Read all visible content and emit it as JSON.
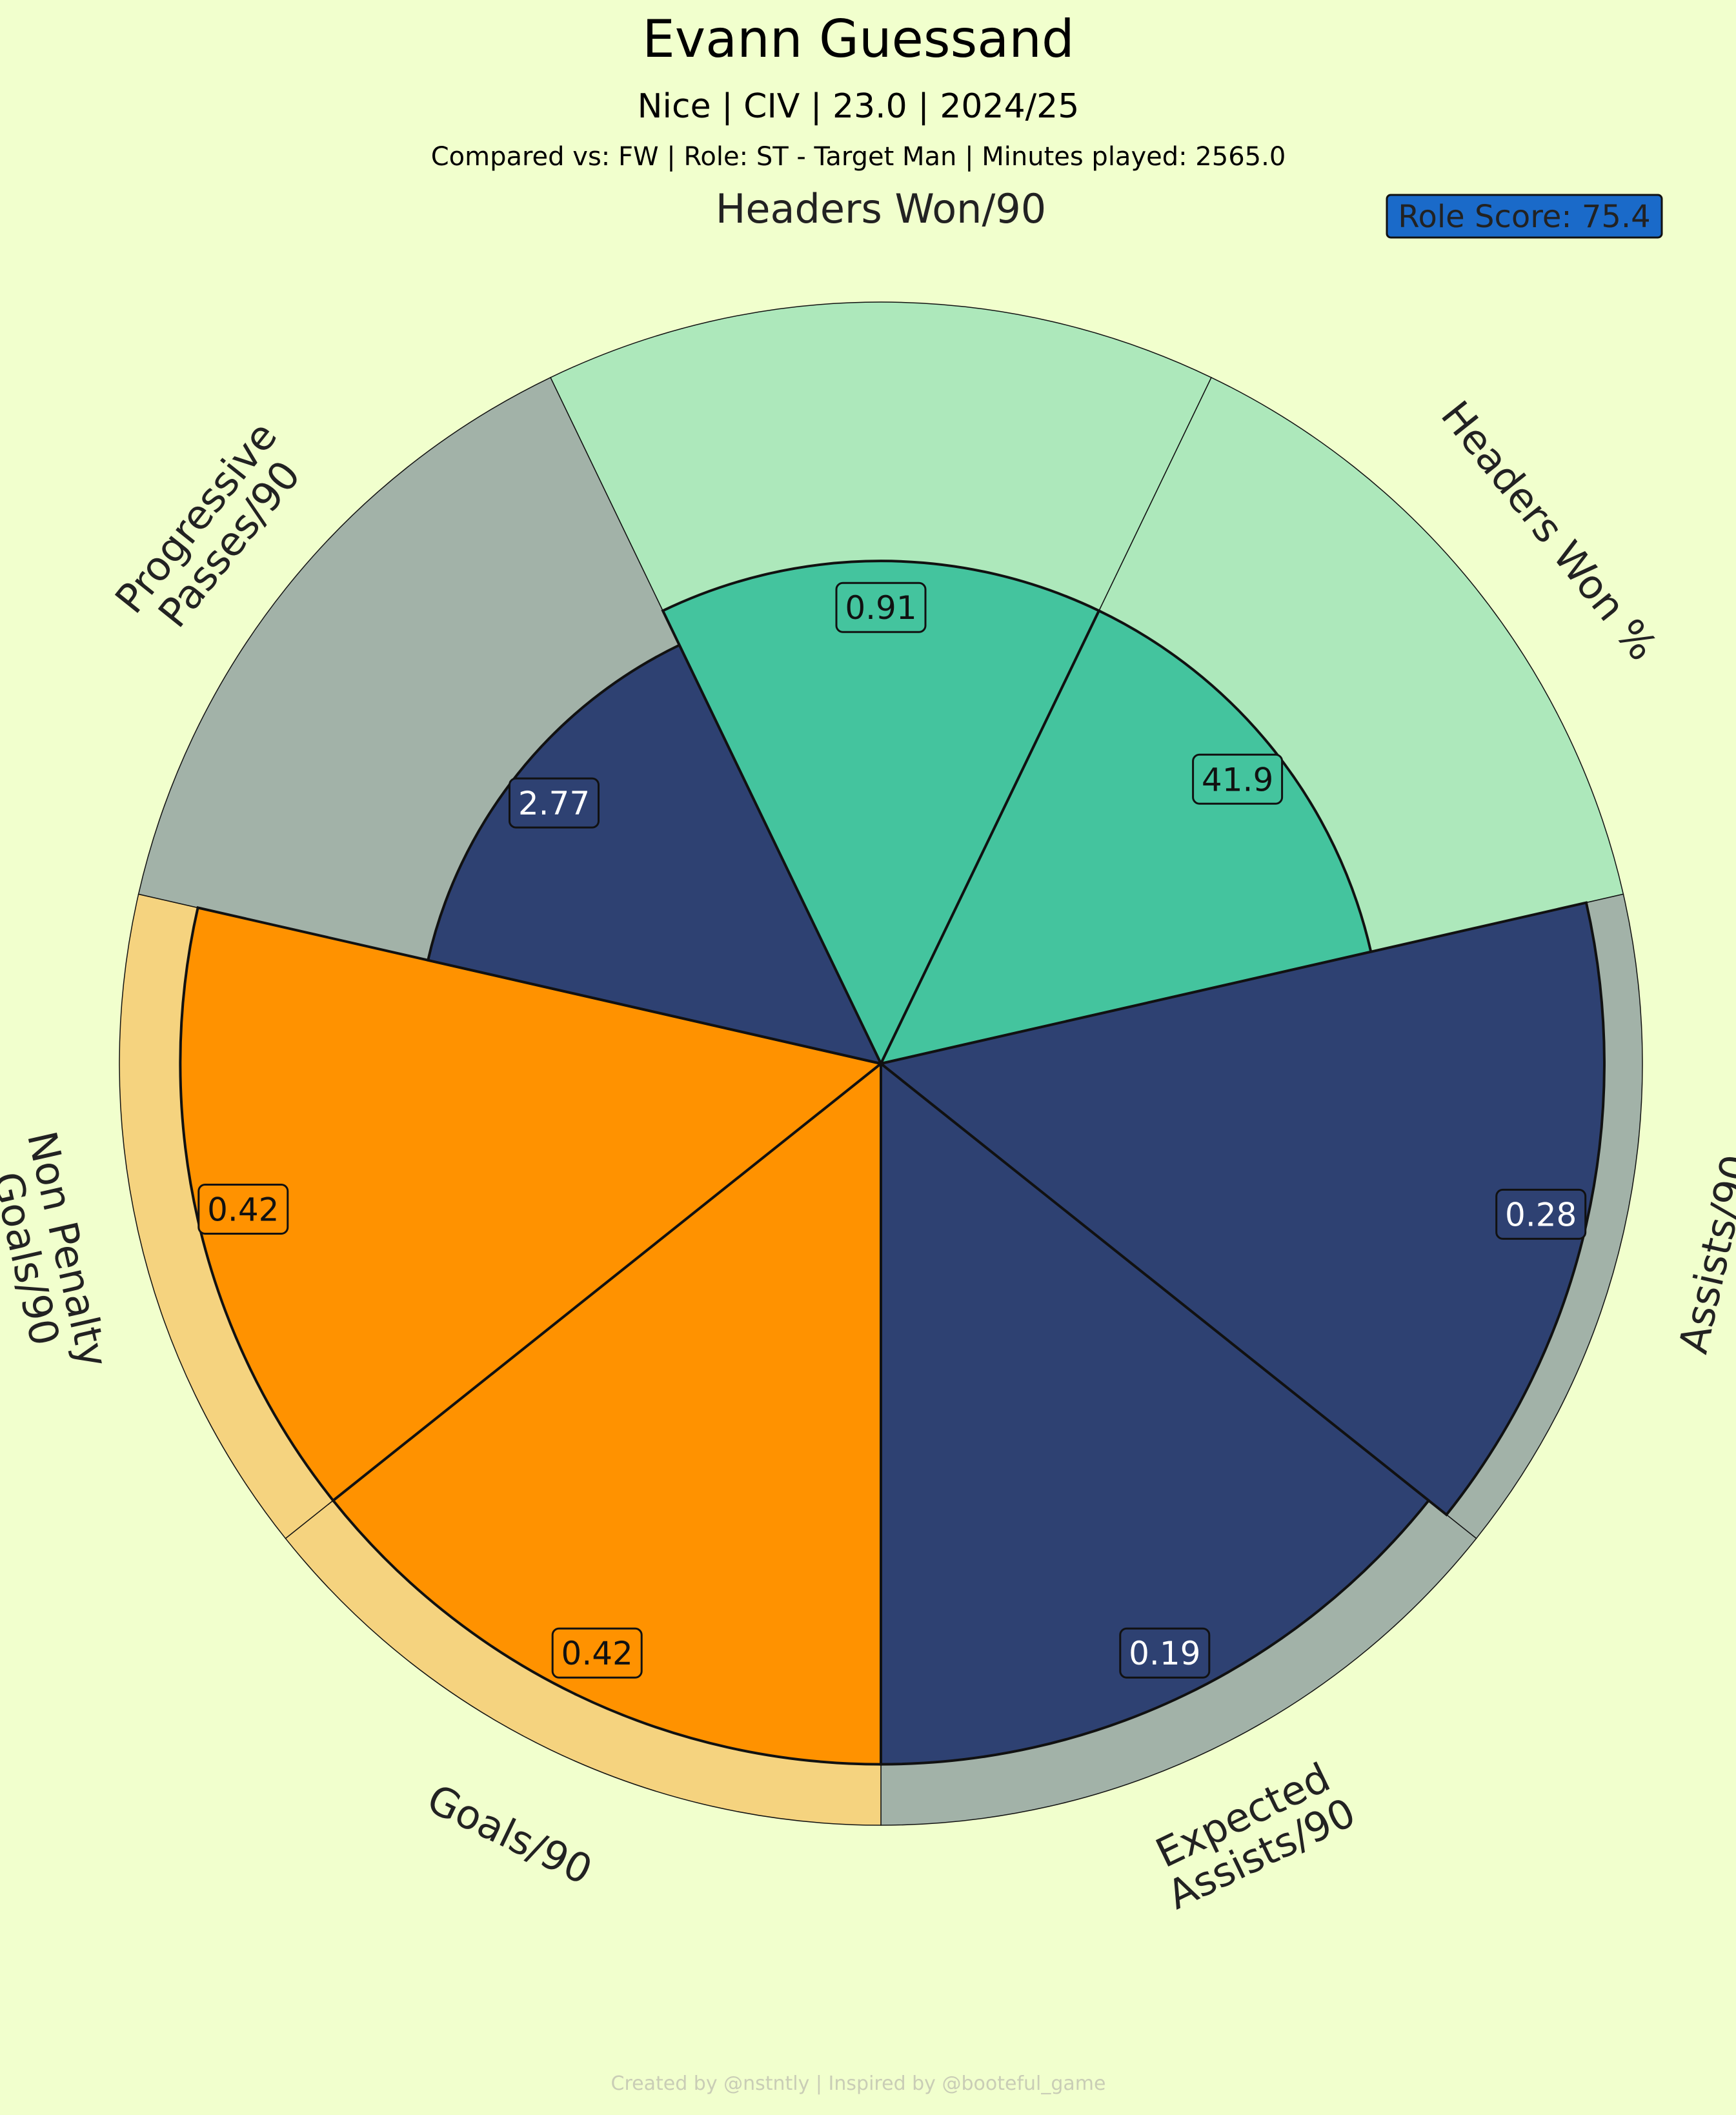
{
  "header": {
    "title": "Evann Guessand",
    "subtitle": "Nice | CIV | 23.0 | 2024/25",
    "comparison": "Compared vs: FW | Role: ST - Target Man | Minutes played: 2565.0"
  },
  "role_score": {
    "label": "Role Score: 75.4",
    "color": "#1a6ac9"
  },
  "footer": "Created by @nstntly | Inspired by @booteful_game",
  "colors": {
    "background": "#f1ffcd",
    "outline": "#111111"
  },
  "chart_data": {
    "type": "pie",
    "variant": "polar-area (pizza) chart",
    "radial_scale": "percentile, 0-100",
    "slices": [
      {
        "label": "Headers Won/90",
        "value": "0.91",
        "percentile": 66,
        "fill": "#44c49e",
        "bg": "#ade8bb",
        "text_color": "#111111"
      },
      {
        "label": "Headers Won %",
        "value": "41.9",
        "percentile": 66,
        "fill": "#44c49e",
        "bg": "#ade8bb",
        "text_color": "#111111"
      },
      {
        "label": "Assists/90",
        "value": "0.28",
        "percentile": 95,
        "fill": "#2e4172",
        "bg": "#a2b2a8",
        "text_color": "#ffffff"
      },
      {
        "label": "Expected\nAssists/90",
        "value": "0.19",
        "percentile": 92,
        "fill": "#2e4172",
        "bg": "#a2b2a8",
        "text_color": "#ffffff"
      },
      {
        "label": "Goals/90",
        "value": "0.42",
        "percentile": 92,
        "fill": "#ff9200",
        "bg": "#f5d37f",
        "text_color": "#111111"
      },
      {
        "label": "Non Penalty\nGoals/90",
        "value": "0.42",
        "percentile": 92,
        "fill": "#ff9200",
        "bg": "#f5d37f",
        "text_color": "#111111"
      },
      {
        "label": "Progressive\nPasses/90",
        "value": "2.77",
        "percentile": 61,
        "fill": "#2e4172",
        "bg": "#a2b2a8",
        "text_color": "#ffffff"
      }
    ]
  }
}
